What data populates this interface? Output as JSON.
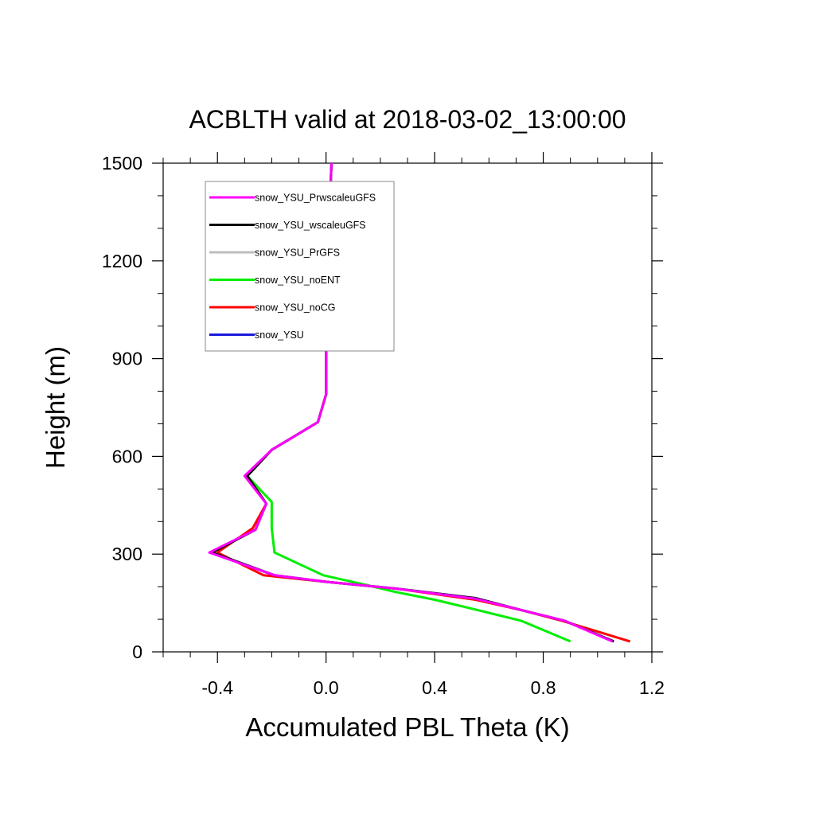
{
  "chart_data": {
    "type": "line",
    "title": "ACBLTH valid at 2018-03-02_13:00:00",
    "xlabel": "Accumulated PBL Theta (K)",
    "ylabel": "Height (m)",
    "xlim": [
      -0.6,
      1.2
    ],
    "ylim": [
      0,
      1500
    ],
    "x_ticks": [
      -0.4,
      0.0,
      0.4,
      0.8,
      1.2
    ],
    "x_tick_labels": [
      "-0.4",
      "0.0",
      "0.4",
      "0.8",
      "1.2"
    ],
    "y_ticks": [
      0,
      300,
      600,
      900,
      1200,
      1500
    ],
    "y_tick_labels": [
      "0",
      "300",
      "600",
      "900",
      "1200",
      "1500"
    ],
    "legend_position": "top-left",
    "series": [
      {
        "name": "snow_YSU",
        "color": "#1a1adb",
        "x": [
          1.06,
          0.88,
          0.72,
          0.55,
          0.25,
          0.0,
          -0.19,
          -0.42,
          -0.26,
          -0.22,
          -0.29,
          -0.2,
          -0.03,
          0.0,
          0.0,
          0.01,
          0.02
        ],
        "y": [
          32,
          95,
          128,
          165,
          195,
          215,
          235,
          305,
          375,
          455,
          540,
          620,
          705,
          790,
          1000,
          1300,
          1500
        ]
      },
      {
        "name": "snow_YSU_noCG",
        "color": "#ff0000",
        "x": [
          1.12,
          0.87,
          0.72,
          0.55,
          0.25,
          0.0,
          -0.23,
          -0.4,
          -0.27,
          -0.22,
          -0.29,
          -0.2,
          -0.03,
          0.0,
          0.0,
          0.01,
          0.02
        ],
        "y": [
          32,
          95,
          128,
          160,
          195,
          215,
          235,
          305,
          380,
          455,
          540,
          620,
          705,
          790,
          1000,
          1300,
          1500
        ]
      },
      {
        "name": "snow_YSU_noENT",
        "color": "#00ee00",
        "x": [
          0.9,
          0.72,
          0.55,
          0.4,
          0.25,
          0.15,
          -0.01,
          -0.19,
          -0.2,
          -0.2,
          -0.29,
          -0.2,
          -0.03,
          0.0,
          0.0,
          0.01,
          0.02
        ],
        "y": [
          32,
          95,
          130,
          160,
          185,
          205,
          235,
          305,
          380,
          460,
          540,
          620,
          705,
          790,
          1000,
          1300,
          1500
        ]
      },
      {
        "name": "snow_YSU_PrGFS",
        "color": "#bdbdbd",
        "x": [
          1.06,
          0.88,
          0.72,
          0.55,
          0.25,
          0.0,
          -0.19,
          -0.42,
          -0.26,
          -0.22,
          -0.29,
          -0.2,
          -0.03,
          0.0,
          0.0,
          0.01,
          0.02
        ],
        "y": [
          32,
          95,
          128,
          165,
          195,
          215,
          235,
          305,
          375,
          455,
          540,
          620,
          705,
          790,
          1000,
          1300,
          1500
        ]
      },
      {
        "name": "snow_YSU_wscaleuGFS",
        "color": "#000000",
        "x": [
          1.06,
          0.88,
          0.72,
          0.55,
          0.25,
          0.0,
          -0.19,
          -0.42,
          -0.26,
          -0.22,
          -0.29,
          -0.2,
          -0.03,
          0.0,
          0.0,
          0.01,
          0.02
        ],
        "y": [
          32,
          95,
          128,
          165,
          195,
          215,
          235,
          305,
          375,
          455,
          540,
          620,
          705,
          790,
          1000,
          1300,
          1500
        ]
      },
      {
        "name": "snow_YSU_Prwscaleu_GFS",
        "color": "#ff00ff",
        "x": [
          1.055,
          0.88,
          0.72,
          0.55,
          0.25,
          0.0,
          -0.19,
          -0.43,
          -0.26,
          -0.22,
          -0.3,
          -0.2,
          -0.03,
          0.0,
          0.0,
          0.01,
          0.02
        ],
        "y": [
          32,
          95,
          128,
          163,
          195,
          215,
          235,
          305,
          375,
          455,
          540,
          620,
          705,
          790,
          1000,
          1300,
          1500
        ]
      }
    ],
    "legend_entries": [
      {
        "label": "snow_YSU_PrwscaleuGFS",
        "color": "#ff00ff"
      },
      {
        "label": "snow_YSU_wscaleuGFS",
        "color": "#000000"
      },
      {
        "label": "snow_YSU_PrGFS",
        "color": "#bdbdbd"
      },
      {
        "label": "snow_YSU_noENT",
        "color": "#00ee00"
      },
      {
        "label": "snow_YSU_noCG",
        "color": "#ff0000"
      },
      {
        "label": "snow_YSU",
        "color": "#1a1adb"
      }
    ]
  }
}
